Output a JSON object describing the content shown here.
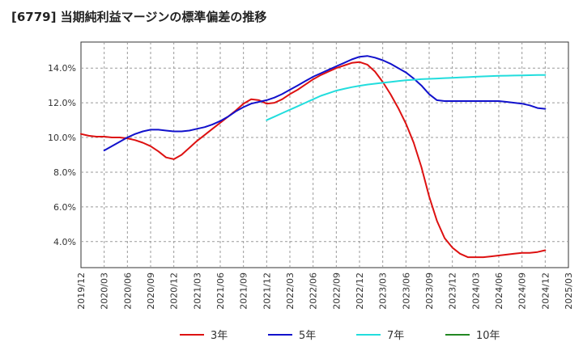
{
  "title": "[6779]  当期純利益マージンの標準偏差の推移",
  "chart_data": {
    "type": "line",
    "title": "[6779]  当期純利益マージンの標準偏差の推移",
    "xlabel": "",
    "ylabel": "",
    "x_ticks": [
      "2019/12",
      "2020/03",
      "2020/06",
      "2020/09",
      "2020/12",
      "2021/03",
      "2021/06",
      "2021/09",
      "2021/12",
      "2022/03",
      "2022/06",
      "2022/09",
      "2022/12",
      "2023/03",
      "2023/06",
      "2023/09",
      "2023/12",
      "2024/03",
      "2024/06",
      "2024/09",
      "2024/12",
      "2025/03"
    ],
    "y_ticks": [
      4.0,
      6.0,
      8.0,
      10.0,
      12.0,
      14.0
    ],
    "y_tick_labels": [
      "4.0%",
      "6.0%",
      "8.0%",
      "10.0%",
      "12.0%",
      "14.0%"
    ],
    "ylim": [
      2.5,
      15.5
    ],
    "grid": true,
    "legend_position": "bottom",
    "series": [
      {
        "name": "3年",
        "color": "#dd1111",
        "x": [
          "2019/12",
          "2020/01",
          "2020/02",
          "2020/03",
          "2020/04",
          "2020/05",
          "2020/06",
          "2020/07",
          "2020/08",
          "2020/09",
          "2020/10",
          "2020/11",
          "2020/12",
          "2021/01",
          "2021/02",
          "2021/03",
          "2021/04",
          "2021/05",
          "2021/06",
          "2021/07",
          "2021/08",
          "2021/09",
          "2021/10",
          "2021/11",
          "2021/12",
          "2022/01",
          "2022/02",
          "2022/03",
          "2022/04",
          "2022/05",
          "2022/06",
          "2022/07",
          "2022/08",
          "2022/09",
          "2022/10",
          "2022/11",
          "2022/12",
          "2023/01",
          "2023/02",
          "2023/03",
          "2023/04",
          "2023/05",
          "2023/06",
          "2023/07",
          "2023/08",
          "2023/09",
          "2023/10",
          "2023/11",
          "2023/12",
          "2024/01",
          "2024/02",
          "2024/03",
          "2024/04",
          "2024/05",
          "2024/06",
          "2024/07",
          "2024/08",
          "2024/09",
          "2024/10",
          "2024/11",
          "2024/12"
        ],
        "values": [
          10.2,
          10.1,
          10.05,
          10.05,
          10.0,
          10.0,
          9.95,
          9.85,
          9.7,
          9.5,
          9.2,
          8.85,
          8.75,
          9.0,
          9.4,
          9.8,
          10.15,
          10.5,
          10.85,
          11.2,
          11.55,
          11.95,
          12.2,
          12.15,
          11.95,
          12.0,
          12.2,
          12.5,
          12.75,
          13.05,
          13.35,
          13.6,
          13.8,
          14.0,
          14.15,
          14.3,
          14.35,
          14.2,
          13.8,
          13.2,
          12.5,
          11.7,
          10.8,
          9.7,
          8.3,
          6.6,
          5.2,
          4.2,
          3.65,
          3.3,
          3.1,
          3.1,
          3.1,
          3.15,
          3.2,
          3.25,
          3.3,
          3.35,
          3.35,
          3.4,
          3.5
        ]
      },
      {
        "name": "5年",
        "color": "#1111cc",
        "x": [
          "2020/03",
          "2020/04",
          "2020/05",
          "2020/06",
          "2020/07",
          "2020/08",
          "2020/09",
          "2020/10",
          "2020/11",
          "2020/12",
          "2021/01",
          "2021/02",
          "2021/03",
          "2021/04",
          "2021/05",
          "2021/06",
          "2021/07",
          "2021/08",
          "2021/09",
          "2021/10",
          "2021/11",
          "2021/12",
          "2022/01",
          "2022/02",
          "2022/03",
          "2022/04",
          "2022/05",
          "2022/06",
          "2022/07",
          "2022/08",
          "2022/09",
          "2022/10",
          "2022/11",
          "2022/12",
          "2023/01",
          "2023/02",
          "2023/03",
          "2023/04",
          "2023/05",
          "2023/06",
          "2023/07",
          "2023/08",
          "2023/09",
          "2023/10",
          "2023/11",
          "2023/12",
          "2024/01",
          "2024/02",
          "2024/03",
          "2024/04",
          "2024/05",
          "2024/06",
          "2024/07",
          "2024/08",
          "2024/09",
          "2024/10",
          "2024/11",
          "2024/12"
        ],
        "values": [
          9.25,
          9.5,
          9.75,
          10.0,
          10.2,
          10.35,
          10.45,
          10.45,
          10.4,
          10.35,
          10.35,
          10.4,
          10.5,
          10.6,
          10.75,
          10.95,
          11.2,
          11.5,
          11.75,
          11.95,
          12.05,
          12.15,
          12.3,
          12.5,
          12.75,
          13.0,
          13.25,
          13.5,
          13.7,
          13.9,
          14.1,
          14.3,
          14.5,
          14.65,
          14.7,
          14.6,
          14.45,
          14.25,
          14.0,
          13.75,
          13.4,
          13.0,
          12.5,
          12.15,
          12.1,
          12.1,
          12.1,
          12.1,
          12.1,
          12.1,
          12.1,
          12.1,
          12.05,
          12.0,
          11.95,
          11.85,
          11.7,
          11.65
        ]
      },
      {
        "name": "7年",
        "color": "#22dddd",
        "x": [
          "2021/12",
          "2022/01",
          "2022/02",
          "2022/03",
          "2022/04",
          "2022/05",
          "2022/06",
          "2022/07",
          "2022/08",
          "2022/09",
          "2022/10",
          "2022/11",
          "2022/12",
          "2023/01",
          "2023/02",
          "2023/03",
          "2023/04",
          "2023/05",
          "2023/06",
          "2023/07",
          "2023/08",
          "2023/09",
          "2023/10",
          "2023/11",
          "2023/12",
          "2024/01",
          "2024/02",
          "2024/03",
          "2024/04",
          "2024/05",
          "2024/06",
          "2024/07",
          "2024/08",
          "2024/09",
          "2024/10",
          "2024/11",
          "2024/12"
        ],
        "values": [
          11.0,
          11.2,
          11.4,
          11.6,
          11.8,
          12.0,
          12.2,
          12.4,
          12.55,
          12.7,
          12.8,
          12.9,
          12.98,
          13.05,
          13.1,
          13.15,
          13.2,
          13.25,
          13.3,
          13.33,
          13.36,
          13.38,
          13.4,
          13.42,
          13.44,
          13.46,
          13.48,
          13.5,
          13.52,
          13.54,
          13.55,
          13.56,
          13.57,
          13.58,
          13.59,
          13.6,
          13.6
        ]
      },
      {
        "name": "10年",
        "color": "#228822",
        "x": [],
        "values": []
      }
    ]
  }
}
